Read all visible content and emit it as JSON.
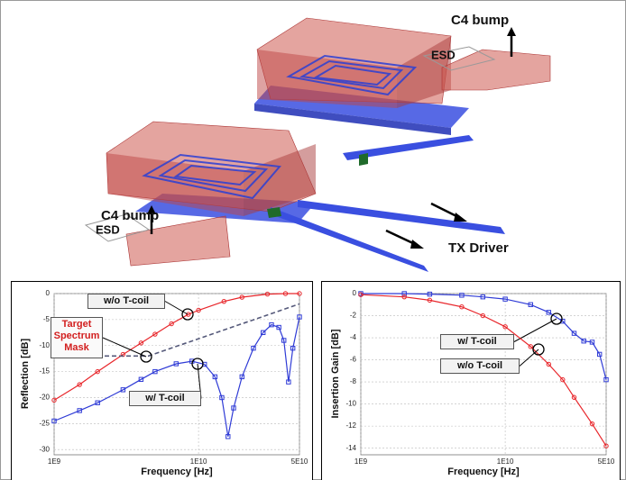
{
  "figure": {
    "labels": {
      "c4_bump_right": "C4 bump",
      "esd_right": "ESD",
      "c4_bump_left": "C4 bump",
      "esd_left": "ESD",
      "tx_driver": "TX Driver"
    }
  },
  "chart_data": [
    {
      "type": "line",
      "ylabel": "Reflection [dB]",
      "xlabel": "Frequency [Hz]",
      "xscale": "log",
      "xlim": [
        1000000000,
        50000000000
      ],
      "xticks": [
        {
          "value": 1000000000,
          "label": "1E9"
        },
        {
          "value": 10000000000,
          "label": "1E10"
        },
        {
          "value": 50000000000,
          "label": "5E10"
        }
      ],
      "ylim": [
        -31,
        0
      ],
      "yticks": [
        0,
        -5,
        -10,
        -15,
        -20,
        -25,
        -30
      ],
      "grid": true,
      "series": [
        {
          "name": "w/o T-coil",
          "color": "#e8262b",
          "marker": "circle",
          "x": [
            1000000000,
            1500000000,
            2000000000,
            3000000000,
            4000000000,
            5000000000,
            6500000000,
            8500000000,
            10000000000,
            15000000000,
            20000000000,
            30000000000,
            40000000000,
            50000000000
          ],
          "values": [
            -20.5,
            -17.5,
            -15,
            -11.7,
            -9.5,
            -7.8,
            -5.8,
            -4,
            -3.2,
            -1.5,
            -0.7,
            -0.1,
            0,
            0
          ]
        },
        {
          "name": "w/ T-coil",
          "color": "#2f3bd6",
          "marker": "square",
          "x": [
            1000000000,
            1500000000,
            2000000000,
            3000000000,
            4000000000,
            5000000000,
            7000000000,
            9000000000,
            11000000000,
            13000000000,
            14500000000,
            16000000000,
            17500000000,
            20000000000,
            24000000000,
            28000000000,
            32000000000,
            36000000000,
            39000000000,
            42000000000,
            45000000000,
            50000000000
          ],
          "values": [
            -24.5,
            -22.5,
            -21,
            -18.5,
            -16.5,
            -15,
            -13.5,
            -13,
            -13.6,
            -16,
            -20,
            -27.5,
            -22,
            -16,
            -10.5,
            -7.5,
            -6,
            -6.5,
            -9,
            -17,
            -10.5,
            -4.5
          ]
        },
        {
          "name": "Target Spectrum Mask",
          "color": "#55597a",
          "dash": true,
          "x": [
            1000000000,
            4500000000,
            50000000000
          ],
          "values": [
            -12,
            -12,
            -2
          ]
        }
      ]
    },
    {
      "type": "line",
      "ylabel": "Insertion Gain [dB]",
      "xlabel": "Frequency [Hz]",
      "xscale": "log",
      "xlim": [
        1000000000,
        50000000000
      ],
      "xticks": [
        {
          "value": 1000000000,
          "label": "1E9"
        },
        {
          "value": 10000000000,
          "label": "1E10"
        },
        {
          "value": 50000000000,
          "label": "5E10"
        }
      ],
      "ylim": [
        -14.6,
        0
      ],
      "yticks": [
        0,
        -2,
        -4,
        -6,
        -8,
        -10,
        -12,
        -14
      ],
      "grid": true,
      "series": [
        {
          "name": "w/ T-coil",
          "color": "#2f3bd6",
          "marker": "square",
          "x": [
            1000000000,
            2000000000,
            3000000000,
            5000000000,
            7000000000,
            10000000000,
            15000000000,
            20000000000,
            25000000000,
            30000000000,
            35000000000,
            40000000000,
            45000000000,
            50000000000
          ],
          "values": [
            0,
            0,
            -0.05,
            -0.15,
            -0.3,
            -0.5,
            -1,
            -1.7,
            -2.5,
            -3.6,
            -4.3,
            -4.4,
            -5.5,
            -7.8
          ]
        },
        {
          "name": "w/o T-coil",
          "color": "#e8262b",
          "marker": "circle",
          "x": [
            1000000000,
            2000000000,
            3000000000,
            5000000000,
            7000000000,
            10000000000,
            15000000000,
            20000000000,
            25000000000,
            30000000000,
            40000000000,
            50000000000
          ],
          "values": [
            -0.1,
            -0.3,
            -0.6,
            -1.2,
            -2,
            -3,
            -4.8,
            -6.4,
            -7.8,
            -9.4,
            -11.8,
            -13.8
          ]
        }
      ]
    }
  ]
}
